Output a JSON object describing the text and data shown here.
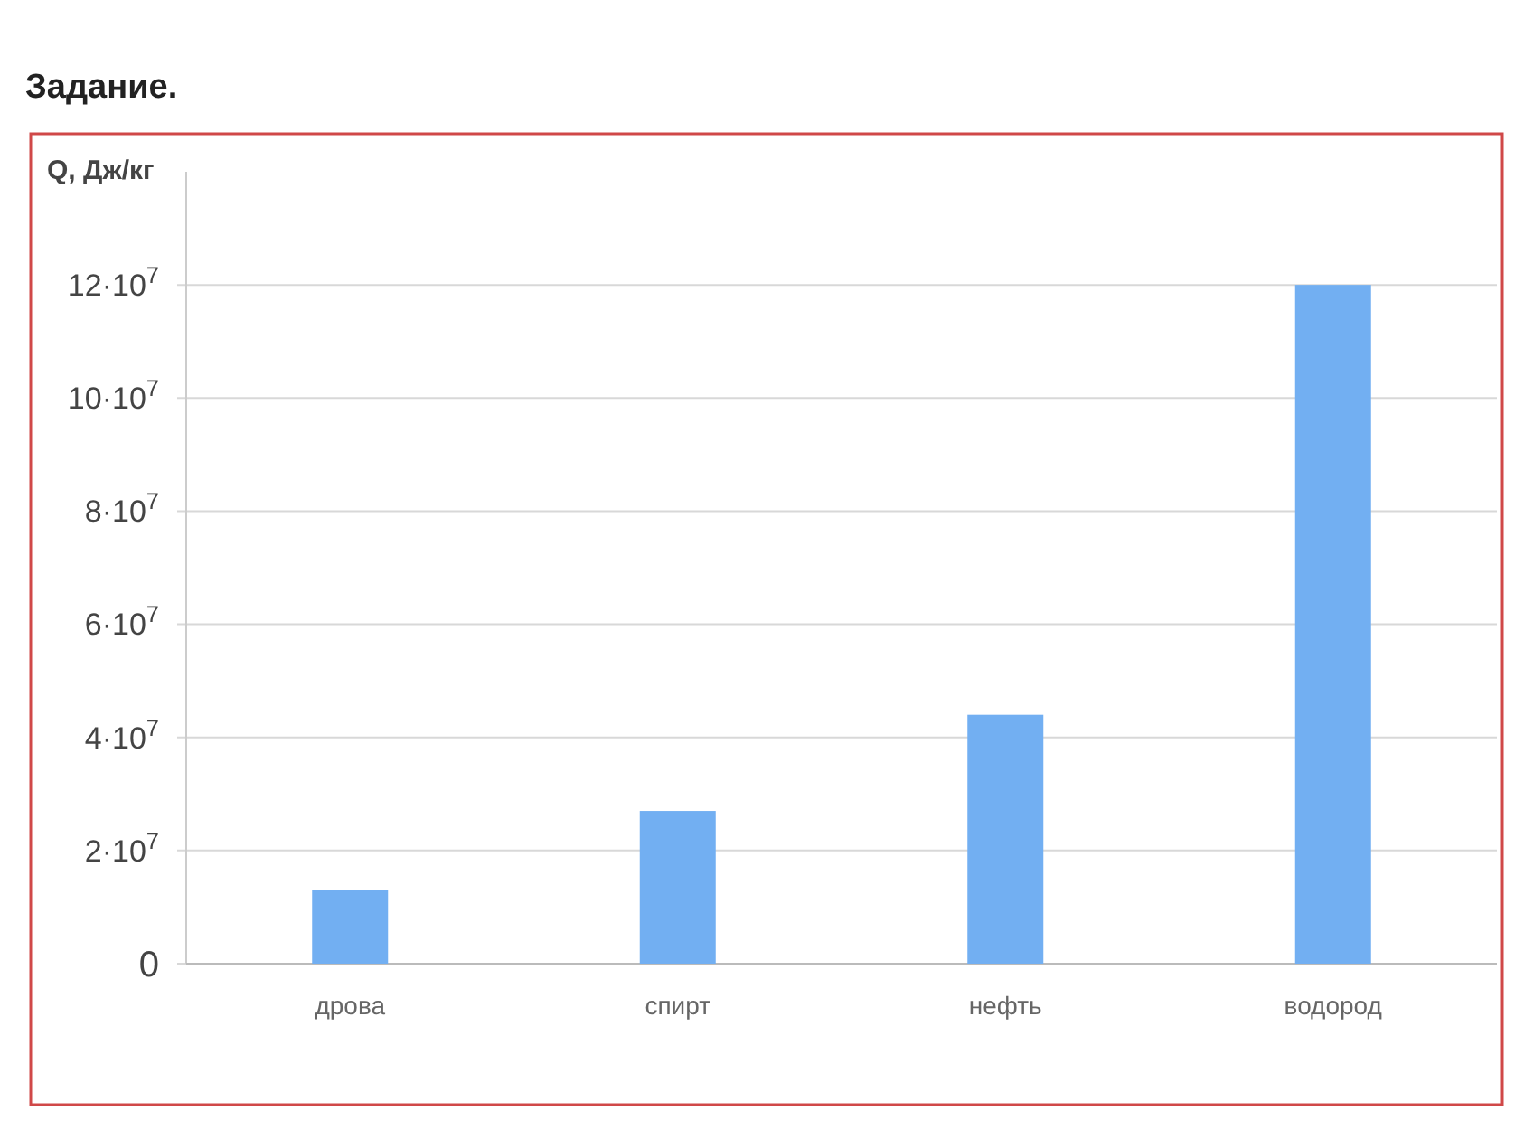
{
  "chart_data": {
    "type": "bar",
    "title": "Задание.",
    "ylabel": "Q, Дж/кг",
    "categories": [
      "дрова",
      "спирт",
      "нефть",
      "водород"
    ],
    "values": [
      13000000,
      27000000,
      44000000,
      120000000
    ],
    "color": "#72aff2",
    "ylim": [
      0,
      140000000
    ],
    "yticks": [
      0,
      {
        "value": 20000000,
        "label": "2·10$^{7}$"
      },
      {
        "value": 40000000,
        "label": "4·10$^{7}$"
      },
      {
        "value": 60000000,
        "label": "6·10$^{7}$"
      },
      {
        "value": 80000000,
        "label": "8·10$^{7}$"
      },
      {
        "value": 100000000,
        "label": "10·10$^{7}$"
      },
      {
        "value": 120000000,
        "label": "12·10$^{7}$"
      }
    ],
    "grid": "y"
  }
}
